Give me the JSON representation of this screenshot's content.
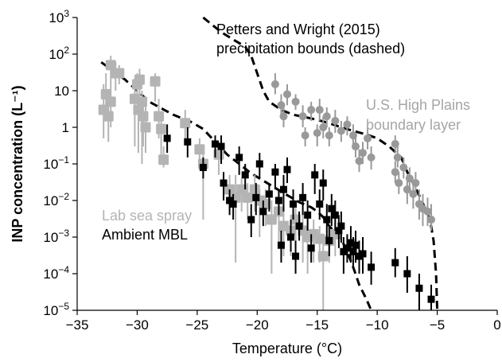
{
  "chart_data": {
    "type": "scatter",
    "title": "",
    "xlabel": "Temperature (°C)",
    "ylabel": "INP concentration (L⁻¹)",
    "xlim": [
      -35,
      0
    ],
    "ylim": [
      1e-05,
      1000
    ],
    "yscale": "log",
    "grid": false,
    "x_ticks": [
      -35,
      -30,
      -25,
      -20,
      -15,
      -10,
      -5,
      0
    ],
    "x_tick_labels": [
      "−35",
      "−30",
      "−25",
      "−20",
      "−15",
      "−10",
      "−5",
      "0"
    ],
    "y_ticks": [
      1e-05,
      0.0001,
      0.001,
      0.01,
      0.1,
      1,
      10,
      100,
      1000
    ],
    "y_tick_labels": [
      {
        "base": "10",
        "exp": "−5"
      },
      {
        "base": "10",
        "exp": "−4"
      },
      {
        "base": "10",
        "exp": "−3"
      },
      {
        "base": "10",
        "exp": "−2"
      },
      {
        "base": "10",
        "exp": "−1"
      },
      {
        "base": "1",
        "exp": ""
      },
      {
        "base": "10",
        "exp": ""
      },
      {
        "base": "10",
        "exp": "2"
      },
      {
        "base": "10",
        "exp": "3"
      }
    ],
    "annotations": {
      "bounds_line1": "Petters and Wright (2015)",
      "bounds_line2": "precipitation bounds (dashed)",
      "plains_line1": "U.S. High Plains",
      "plains_line2": "boundary layer",
      "lab": "Lab sea spray",
      "ambient": "Ambient MBL"
    },
    "colors": {
      "ambient": "#000000",
      "lab": "#b4b4b4",
      "plains": "#999999",
      "bounds": "#000000"
    },
    "series": [
      {
        "name": "Lab sea spray",
        "marker": "square-large",
        "points": [
          [
            -32.8,
            3,
            0.5,
            15
          ],
          [
            -32.6,
            8,
            1.5,
            30
          ],
          [
            -32.4,
            2,
            0.4,
            8
          ],
          [
            -32.2,
            5,
            1,
            20
          ],
          [
            -32.2,
            50,
            20,
            90
          ],
          [
            -31.8,
            30,
            10,
            60
          ],
          [
            -31.5,
            30,
            15,
            50
          ],
          [
            -30.2,
            6,
            0.3,
            12
          ],
          [
            -30.0,
            15,
            5,
            30
          ],
          [
            -29.9,
            3,
            0.2,
            8
          ],
          [
            -29.8,
            20,
            8,
            40
          ],
          [
            -29.6,
            5,
            0.1,
            10
          ],
          [
            -29.5,
            2,
            0.3,
            6
          ],
          [
            -29.3,
            1,
            0.2,
            4
          ],
          [
            -28.5,
            18,
            5,
            30
          ],
          [
            -28.2,
            2,
            0.5,
            6
          ],
          [
            -28.0,
            0.9,
            0.15,
            2
          ],
          [
            -27.8,
            0.13,
            0.08,
            0.3
          ],
          [
            -26.0,
            1.3,
            0.5,
            3
          ],
          [
            -24.8,
            0.25,
            0.1,
            0.5
          ],
          [
            -24.5,
            0.1,
            0.003,
            0.2
          ],
          [
            -23.2,
            0.18,
            0.05,
            0.4
          ],
          [
            -22.3,
            0.02,
            0.005,
            0.05
          ],
          [
            -21.8,
            0.012,
            0.0002,
            0.05
          ],
          [
            -21.3,
            0.02,
            0.005,
            0.04
          ],
          [
            -20.8,
            0.012,
            0.003,
            0.03
          ],
          [
            -20.2,
            0.02,
            0.005,
            0.05
          ],
          [
            -19.8,
            0.01,
            0.001,
            0.02
          ],
          [
            -19.3,
            0.008,
            0.002,
            0.02
          ],
          [
            -18.8,
            0.003,
            0.0001,
            0.01
          ],
          [
            -18.2,
            0.005,
            0.0005,
            0.01
          ],
          [
            -17.8,
            0.002,
            0.0003,
            0.006
          ],
          [
            -17.2,
            0.0015,
            0.0003,
            0.004
          ],
          [
            -16.8,
            0.003,
            0.0005,
            0.008
          ],
          [
            -16.2,
            0.0015,
            0.0002,
            0.004
          ],
          [
            -15.8,
            0.001,
            0.0001,
            0.003
          ],
          [
            -15.3,
            0.0012,
            0.0002,
            0.003
          ],
          [
            -14.8,
            0.0009,
            0.0002,
            0.002
          ],
          [
            -14.5,
            0.0003,
            1e-05,
            0.0008
          ],
          [
            -14.0,
            0.0008,
            0.0002,
            0.002
          ],
          [
            -13.5,
            0.0012,
            0.0003,
            0.003
          ]
        ]
      },
      {
        "name": "Ambient MBL",
        "marker": "square-small",
        "points": [
          [
            -27.5,
            0.5,
            0.2,
            1.2
          ],
          [
            -25.8,
            0.4,
            0.15,
            1
          ],
          [
            -24.5,
            0.08,
            0.04,
            0.15
          ],
          [
            -23.5,
            0.35,
            0.15,
            0.6
          ],
          [
            -23.0,
            0.3,
            0.1,
            0.6
          ],
          [
            -22.8,
            0.03,
            0.01,
            0.06
          ],
          [
            -22.3,
            0.01,
            0.004,
            0.02
          ],
          [
            -22.0,
            0.008,
            0.003,
            0.015
          ],
          [
            -21.5,
            0.15,
            0.05,
            0.3
          ],
          [
            -21.0,
            0.05,
            0.02,
            0.1
          ],
          [
            -20.5,
            0.003,
            0.001,
            0.008
          ],
          [
            -20.1,
            0.012,
            0.004,
            0.03
          ],
          [
            -19.8,
            0.1,
            0.04,
            0.2
          ],
          [
            -19.5,
            0.005,
            0.002,
            0.01
          ],
          [
            -19.0,
            0.015,
            0.005,
            0.03
          ],
          [
            -18.5,
            0.06,
            0.02,
            0.1
          ],
          [
            -18.2,
            0.01,
            0.004,
            0.02
          ],
          [
            -18.0,
            0.0006,
            0.0002,
            0.0015
          ],
          [
            -17.8,
            0.02,
            0.005,
            0.05
          ],
          [
            -17.5,
            0.07,
            0.03,
            0.15
          ],
          [
            -17.2,
            0.001,
            0.0004,
            0.003
          ],
          [
            -17.0,
            0.008,
            0.003,
            0.02
          ],
          [
            -16.8,
            0.0003,
            0.0001,
            0.0008
          ],
          [
            -16.5,
            0.002,
            0.0008,
            0.005
          ],
          [
            -16.2,
            0.012,
            0.004,
            0.03
          ],
          [
            -15.8,
            0.004,
            0.0015,
            0.01
          ],
          [
            -15.5,
            0.0005,
            0.0002,
            0.0012
          ],
          [
            -15.2,
            0.05,
            0.015,
            0.1
          ],
          [
            -14.8,
            0.008,
            0.003,
            0.02
          ],
          [
            -14.5,
            0.03,
            0.01,
            0.07
          ],
          [
            -14.2,
            0.003,
            0.001,
            0.008
          ],
          [
            -14.0,
            0.0008,
            0.0003,
            0.002
          ],
          [
            -13.8,
            0.006,
            0.002,
            0.015
          ],
          [
            -13.5,
            0.004,
            0.0015,
            0.01
          ],
          [
            -13.2,
            0.0015,
            0.0005,
            0.004
          ],
          [
            -13.0,
            0.002,
            0.0007,
            0.005
          ],
          [
            -12.8,
            0.0004,
            0.0001,
            0.001
          ],
          [
            -12.5,
            0.0005,
            0.0002,
            0.0012
          ],
          [
            -12.2,
            0.0007,
            0.0002,
            0.002
          ],
          [
            -12.0,
            0.0004,
            0.00015,
            0.001
          ],
          [
            -11.8,
            0.0006,
            0.0002,
            0.0015
          ],
          [
            -11.5,
            0.0003,
            0.0001,
            0.0008
          ],
          [
            -11.2,
            0.00035,
            0.0001,
            0.001
          ],
          [
            -10.5,
            0.00015,
            5e-05,
            0.0004
          ],
          [
            -8.5,
            0.0002,
            8e-05,
            0.0005
          ],
          [
            -7.5,
            0.0001,
            3e-05,
            0.0003
          ],
          [
            -6.5,
            4e-05,
            1e-05,
            0.0001
          ],
          [
            -5.5,
            2e-05,
            1e-05,
            5e-05
          ]
        ]
      },
      {
        "name": "U.S. High Plains boundary layer",
        "marker": "circle",
        "points": [
          [
            -18.5,
            15,
            8,
            30
          ],
          [
            -18.0,
            4,
            2,
            8
          ],
          [
            -17.5,
            8,
            4,
            15
          ],
          [
            -17.8,
            2,
            1,
            4
          ],
          [
            -16.8,
            5,
            3,
            8
          ],
          [
            -16.2,
            2,
            1,
            4
          ],
          [
            -16.0,
            0.6,
            0.3,
            1
          ],
          [
            -15.5,
            3,
            1.5,
            5
          ],
          [
            -15.0,
            0.7,
            0.3,
            1.2
          ],
          [
            -14.8,
            3,
            1.5,
            6
          ],
          [
            -14.5,
            1,
            0.5,
            2
          ],
          [
            -14.2,
            2,
            1,
            3.5
          ],
          [
            -14.0,
            0.6,
            0.3,
            1
          ],
          [
            -13.5,
            1.5,
            0.7,
            3
          ],
          [
            -13.0,
            0.8,
            0.4,
            1.5
          ],
          [
            -12.5,
            1.2,
            0.6,
            2
          ],
          [
            -12.0,
            0.6,
            0.25,
            1.2
          ],
          [
            -11.8,
            0.3,
            0.15,
            0.6
          ],
          [
            -11.5,
            0.12,
            0.06,
            0.25
          ],
          [
            -11.2,
            0.2,
            0.1,
            0.4
          ],
          [
            -10.8,
            0.5,
            0.25,
            1
          ],
          [
            -10.5,
            0.15,
            0.07,
            0.3
          ],
          [
            -8.5,
            0.35,
            0.2,
            0.6
          ],
          [
            -8.3,
            0.15,
            0.08,
            0.3
          ],
          [
            -8.5,
            0.06,
            0.03,
            0.12
          ],
          [
            -8.2,
            0.03,
            0.015,
            0.06
          ],
          [
            -7.8,
            0.08,
            0.04,
            0.15
          ],
          [
            -7.5,
            0.02,
            0.008,
            0.05
          ],
          [
            -7.3,
            0.04,
            0.02,
            0.08
          ],
          [
            -7.0,
            0.015,
            0.006,
            0.03
          ],
          [
            -6.8,
            0.03,
            0.015,
            0.06
          ],
          [
            -6.5,
            0.008,
            0.003,
            0.02
          ],
          [
            -6.2,
            0.006,
            0.002,
            0.015
          ],
          [
            -5.8,
            0.005,
            0.002,
            0.012
          ],
          [
            -5.5,
            0.003,
            0.0015,
            0.008
          ]
        ]
      },
      {
        "name": "Petters and Wright (2015) precipitation bounds (dashed)",
        "marker": "dashed-line",
        "lines": [
          [
            [
              -33,
              60
            ],
            [
              -31,
              20
            ],
            [
              -29,
              5
            ],
            [
              -27,
              2.2
            ],
            [
              -25.5,
              1.4
            ],
            [
              -24.5,
              0.9
            ],
            [
              -23.5,
              0.4
            ],
            [
              -22.5,
              0.18
            ],
            [
              -21.5,
              0.1
            ],
            [
              -20.5,
              0.055
            ],
            [
              -19.5,
              0.035
            ],
            [
              -18.5,
              0.022
            ],
            [
              -17.5,
              0.014
            ],
            [
              -16.5,
              0.009
            ],
            [
              -15.5,
              0.0065
            ],
            [
              -15,
              0.005
            ],
            [
              -14.5,
              0.0035
            ],
            [
              -14,
              0.002
            ],
            [
              -13,
              0.0009
            ],
            [
              -12.5,
              0.0004
            ],
            [
              -12,
              0.00015
            ],
            [
              -11.5,
              5e-05
            ],
            [
              -10.9,
              2e-05
            ],
            [
              -10.5,
              1e-05
            ]
          ],
          [
            [
              -24.5,
              1000
            ],
            [
              -23,
              400
            ],
            [
              -22,
              250
            ],
            [
              -21,
              160
            ],
            [
              -20.5,
              90
            ],
            [
              -20,
              30
            ],
            [
              -19.5,
              10
            ],
            [
              -19,
              5
            ],
            [
              -18,
              3
            ],
            [
              -17,
              2.2
            ],
            [
              -16,
              1.9
            ],
            [
              -15,
              1.6
            ],
            [
              -14,
              1.3
            ],
            [
              -13,
              1
            ],
            [
              -12,
              0.8
            ],
            [
              -11,
              0.65
            ],
            [
              -10,
              0.5
            ],
            [
              -9,
              0.3
            ],
            [
              -8,
              0.15
            ],
            [
              -7.5,
              0.06
            ],
            [
              -7,
              0.03
            ],
            [
              -6.3,
              0.01
            ],
            [
              -5.6,
              0.003
            ],
            [
              -5.3,
              0.0008
            ],
            [
              -5.1,
              0.0001
            ],
            [
              -5.0,
              1e-05
            ]
          ]
        ]
      }
    ]
  }
}
